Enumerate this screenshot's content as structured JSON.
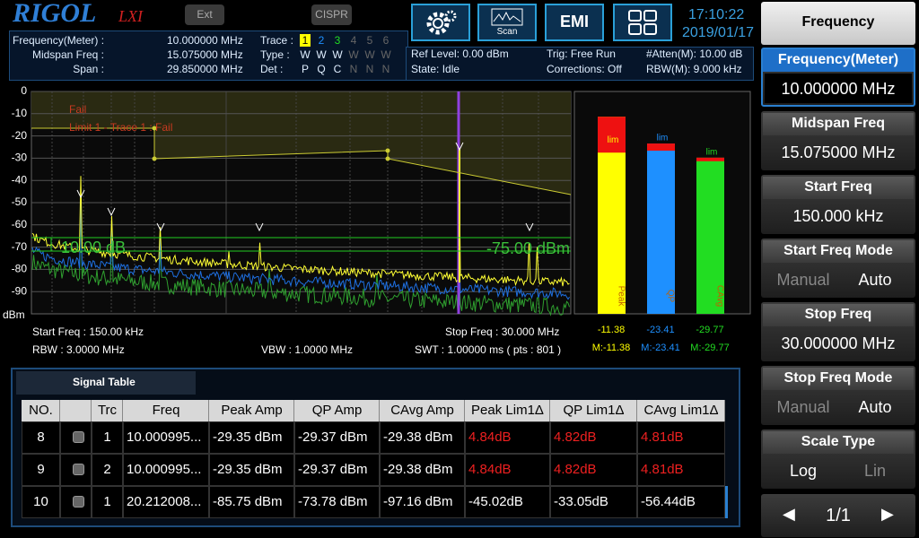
{
  "header": {
    "logo": "RIGOL",
    "logo_sub": "LXI",
    "ext": "Ext",
    "cispr": "CISPR",
    "scan": "Scan",
    "emi": "EMI",
    "time": "17:10:22",
    "date": "2019/01/17"
  },
  "info": {
    "rows": [
      [
        "Frequency(Meter) :",
        "10.000000 MHz"
      ],
      [
        "Midspan Freq :",
        "15.075000 MHz"
      ],
      [
        "Span :",
        "29.850000 MHz"
      ]
    ],
    "trace": {
      "label": "Trace :",
      "values": [
        "1",
        "2",
        "3",
        "4",
        "5",
        "6"
      ]
    },
    "type": {
      "label": "Type :",
      "values": [
        "W",
        "W",
        "W",
        "W",
        "W",
        "W"
      ]
    },
    "det": {
      "label": "Det :",
      "values": [
        "P",
        "Q",
        "C",
        "N",
        "N",
        "N"
      ]
    },
    "status": [
      "Ref Level: 0.00 dBm",
      "State: Idle",
      "Trig: Free Run",
      "Corrections: Off",
      "#Atten(M): 10.00 dB",
      "RBW(M): 9.000 kHz"
    ]
  },
  "plot": {
    "ylim": [
      0,
      -100
    ],
    "yticks": [
      0,
      -10,
      -20,
      -30,
      -40,
      -50,
      -60,
      -70,
      -80,
      -90
    ],
    "unit": "dBm",
    "fail": "Fail",
    "fail_detail": "Limit 1 - Trace 1 : Fail",
    "delta_label": "10.00 dB",
    "threshold_label": "-75.00 dBm"
  },
  "plot_footer": {
    "start": "Start Freq : 150.00 kHz",
    "stop": "Stop Freq : 30.000 MHz",
    "rbw": "RBW : 3.0000 MHz",
    "vbw": "VBW : 1.0000 MHz",
    "swt": "SWT : 1.00000 ms ( pts : 801 )"
  },
  "meter": {
    "bars": [
      {
        "name": "Peak",
        "value": -11.38,
        "marker": "M:-11.38",
        "limit": "lim",
        "color": "#ffff00"
      },
      {
        "name": "QP",
        "value": -23.41,
        "marker": "M:-23.41",
        "limit": "lim",
        "color": "#1e90ff"
      },
      {
        "name": "CAvg",
        "value": -29.77,
        "marker": "M:-29.77",
        "limit": "lim",
        "color": "#22dd22"
      }
    ]
  },
  "signal_table": {
    "title": "Signal Table",
    "columns": [
      "NO.",
      "Trc",
      "Freq",
      "Peak Amp",
      "QP Amp",
      "CAvg Amp",
      "Peak Lim1Δ",
      "QP Lim1Δ",
      "CAvg Lim1Δ"
    ],
    "rows": [
      [
        "8",
        "1",
        "10.000995...",
        "-29.35 dBm",
        "-29.37 dBm",
        "-29.38 dBm",
        "4.84dB",
        "4.82dB",
        "4.81dB"
      ],
      [
        "9",
        "2",
        "10.000995...",
        "-29.35 dBm",
        "-29.37 dBm",
        "-29.38 dBm",
        "4.84dB",
        "4.82dB",
        "4.81dB"
      ],
      [
        "10",
        "1",
        "20.212008...",
        "-85.75 dBm",
        "-73.78 dBm",
        "-97.16 dBm",
        "-45.02dB",
        "-33.05dB",
        "-56.44dB"
      ]
    ]
  },
  "menu": {
    "title": "Frequency",
    "active": 0,
    "keys": [
      {
        "label": "Frequency(Meter)",
        "value": "10.000000 MHz"
      },
      {
        "label": "Midspan Freq",
        "value": "15.075000 MHz"
      },
      {
        "label": "Start Freq",
        "value": "150.000 kHz"
      },
      {
        "label": "Start Freq Mode",
        "options": [
          "Manual",
          "Auto"
        ],
        "selected": 1
      },
      {
        "label": "Stop Freq",
        "value": "30.000000 MHz"
      },
      {
        "label": "Stop Freq Mode",
        "options": [
          "Manual",
          "Auto"
        ],
        "selected": 1
      },
      {
        "label": "Scale Type",
        "options": [
          "Log",
          "Lin"
        ],
        "selected": 0
      }
    ],
    "page": "1/1"
  }
}
